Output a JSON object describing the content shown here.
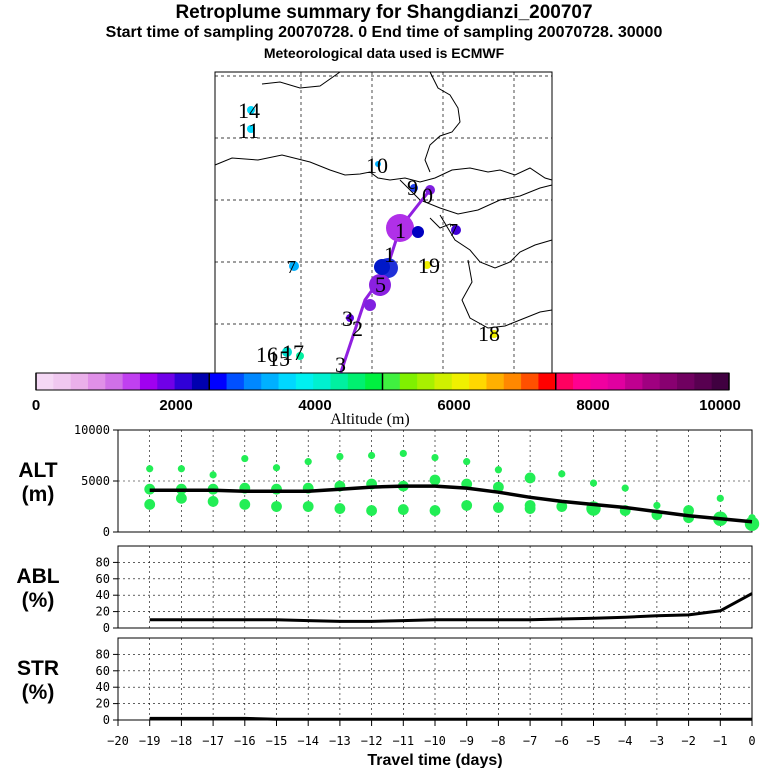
{
  "header": {
    "title": "Retroplume summary for Shangdianzi_200707",
    "sampling_line": "Start time of sampling 20070728.    0     End time of sampling 20070728. 30000",
    "met_line": "Meteorological data used is ECMWF"
  },
  "colorbar": {
    "label": "Altitude (m)",
    "ticks": [
      "0",
      "2000",
      "4000",
      "6000",
      "8000",
      "10000"
    ],
    "colors": [
      "#f5d8f5",
      "#f0c8f0",
      "#eab0ea",
      "#e090e8",
      "#d070e8",
      "#c040f0",
      "#a000f0",
      "#7000e8",
      "#3000d8",
      "#0000b0",
      "#0000ff",
      "#0050ff",
      "#0088ff",
      "#00b0ff",
      "#00d8ff",
      "#00f0f0",
      "#00f0d0",
      "#00f0a0",
      "#00f070",
      "#00f040",
      "#40f040",
      "#80f000",
      "#a8f000",
      "#d0f000",
      "#f0f000",
      "#ffd800",
      "#ffb000",
      "#ff8800",
      "#ff5000",
      "#ff0000",
      "#ff0060",
      "#ff0090",
      "#f000a0",
      "#e000a0",
      "#c00090",
      "#a00080",
      "#880070",
      "#700060",
      "#580050",
      "#400040"
    ]
  },
  "map": {
    "labels": [
      "14",
      "11",
      "10",
      "9",
      "0",
      "1",
      "7",
      "7",
      "19",
      "1",
      "5",
      "3",
      "2",
      "18",
      "16",
      "15",
      "17",
      "3"
    ]
  },
  "chart_data": [
    {
      "type": "scatter",
      "name": "ALT",
      "ylabel_line1": "ALT",
      "ylabel_line2": "(m)",
      "ylim": [
        0,
        10000
      ],
      "yticks": [
        "0",
        "5000",
        "10000"
      ],
      "mean_line": {
        "x": [
          -19,
          -18,
          -17,
          -16,
          -15,
          -14,
          -13,
          -12,
          -11,
          -10,
          -9,
          -8,
          -7,
          -6,
          -5,
          -4,
          -3,
          -2,
          -1,
          0
        ],
        "y": [
          4100,
          4100,
          4100,
          4000,
          4000,
          4000,
          4200,
          4400,
          4500,
          4500,
          4300,
          3900,
          3400,
          3000,
          2700,
          2400,
          2000,
          1600,
          1300,
          1000
        ]
      },
      "points": {
        "x": [
          -19,
          -19,
          -19,
          -18,
          -18,
          -18,
          -17,
          -17,
          -17,
          -16,
          -16,
          -16,
          -15,
          -15,
          -15,
          -14,
          -14,
          -14,
          -13,
          -13,
          -13,
          -12,
          -12,
          -12,
          -11,
          -11,
          -11,
          -10,
          -10,
          -10,
          -9,
          -9,
          -9,
          -8,
          -8,
          -8,
          -7,
          -7,
          -7,
          -6,
          -6,
          -5,
          -5,
          -4,
          -4,
          -3,
          -3,
          -2,
          -2,
          -1,
          -1,
          0,
          0
        ],
        "y": [
          6200,
          4200,
          2700,
          6200,
          4200,
          3300,
          5600,
          4200,
          3000,
          7200,
          4300,
          2700,
          6300,
          4200,
          2500,
          6900,
          4300,
          2500,
          7400,
          4500,
          2300,
          7500,
          4700,
          2100,
          7700,
          4500,
          2200,
          7300,
          5100,
          2100,
          6900,
          4700,
          2600,
          6100,
          4400,
          2400,
          5300,
          2600,
          2300,
          5700,
          2500,
          4800,
          2300,
          4300,
          2100,
          2600,
          1700,
          2100,
          1400,
          3300,
          1300,
          1400,
          800
        ],
        "size": [
          2,
          3,
          3,
          2,
          3,
          3,
          2,
          3,
          3,
          2,
          3,
          3,
          2,
          3,
          3,
          2,
          3,
          3,
          2,
          3,
          3,
          2,
          3,
          3,
          2,
          3,
          3,
          2,
          3,
          3,
          2,
          3,
          3,
          2,
          3,
          3,
          3,
          3,
          3,
          2,
          3,
          2,
          4,
          2,
          3,
          2,
          3,
          3,
          3,
          2,
          4,
          2,
          4
        ]
      },
      "color": "#22ee55"
    },
    {
      "type": "line",
      "name": "ABL",
      "ylabel_line1": "ABL",
      "ylabel_line2": "(%)",
      "ylim": [
        0,
        100
      ],
      "yticks": [
        "0",
        "20",
        "40",
        "60",
        "80"
      ],
      "x": [
        -19,
        -18,
        -17,
        -16,
        -15,
        -14,
        -13,
        -12,
        -11,
        -10,
        -9,
        -8,
        -7,
        -6,
        -5,
        -4,
        -3,
        -2,
        -1,
        0
      ],
      "y": [
        10,
        10,
        10,
        10,
        10,
        9,
        8,
        8,
        9,
        10,
        10,
        10,
        10,
        11,
        12,
        13,
        15,
        16,
        21,
        42
      ]
    },
    {
      "type": "line",
      "name": "STR",
      "ylabel_line1": "STR",
      "ylabel_line2": "(%)",
      "ylim": [
        0,
        100
      ],
      "yticks": [
        "0",
        "20",
        "40",
        "60",
        "80"
      ],
      "x": [
        -19,
        -18,
        -17,
        -16,
        -15,
        -14,
        -13,
        -12,
        -11,
        -10,
        -9,
        -8,
        -7,
        -6,
        -5,
        -4,
        -3,
        -2,
        -1,
        0
      ],
      "y": [
        2,
        2,
        2,
        2,
        1,
        1,
        1,
        1,
        1,
        1,
        1,
        1,
        1,
        1,
        1,
        1,
        1,
        1,
        1,
        1
      ]
    }
  ],
  "xaxis": {
    "label": "Travel time (days)",
    "ticks": [
      "−20",
      "−19",
      "−18",
      "−17",
      "−16",
      "−15",
      "−14",
      "−13",
      "−12",
      "−11",
      "−10",
      "−9",
      "−8",
      "−7",
      "−6",
      "−5",
      "−4",
      "−3",
      "−2",
      "−1",
      "0"
    ]
  }
}
